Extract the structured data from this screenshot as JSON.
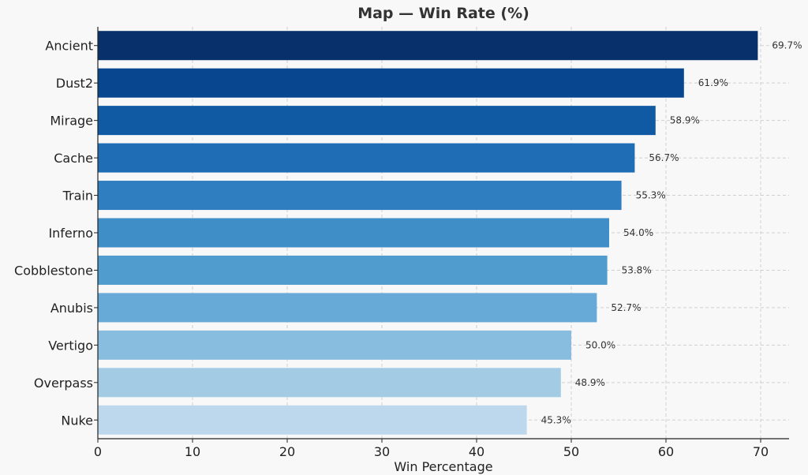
{
  "chart_data": {
    "type": "bar",
    "orientation": "horizontal",
    "title": "Map — Win Rate (%)",
    "xlabel": "Win Percentage",
    "ylabel": "",
    "categories": [
      "Ancient",
      "Dust2",
      "Mirage",
      "Cache",
      "Train",
      "Inferno",
      "Cobblestone",
      "Anubis",
      "Vertigo",
      "Overpass",
      "Nuke"
    ],
    "values": [
      69.7,
      61.9,
      58.9,
      56.7,
      55.3,
      54.0,
      53.8,
      52.7,
      50.0,
      48.9,
      45.3
    ],
    "data_labels": [
      "69.7%",
      "61.9%",
      "58.9%",
      "56.7%",
      "55.3%",
      "54.0%",
      "53.8%",
      "52.7%",
      "50.0%",
      "48.9%",
      "45.3%"
    ],
    "xlim": [
      0,
      73
    ],
    "xticks": [
      0,
      10,
      20,
      30,
      40,
      50,
      60,
      70
    ],
    "grid": true,
    "colors": [
      "#08306b",
      "#08468f",
      "#0f5aa3",
      "#1f6db4",
      "#2f7ec0",
      "#3f8ec8",
      "#519ccf",
      "#67aad7",
      "#88bddf",
      "#a3cbe4",
      "#bdd7ec"
    ],
    "background": "#f8f8f8"
  }
}
